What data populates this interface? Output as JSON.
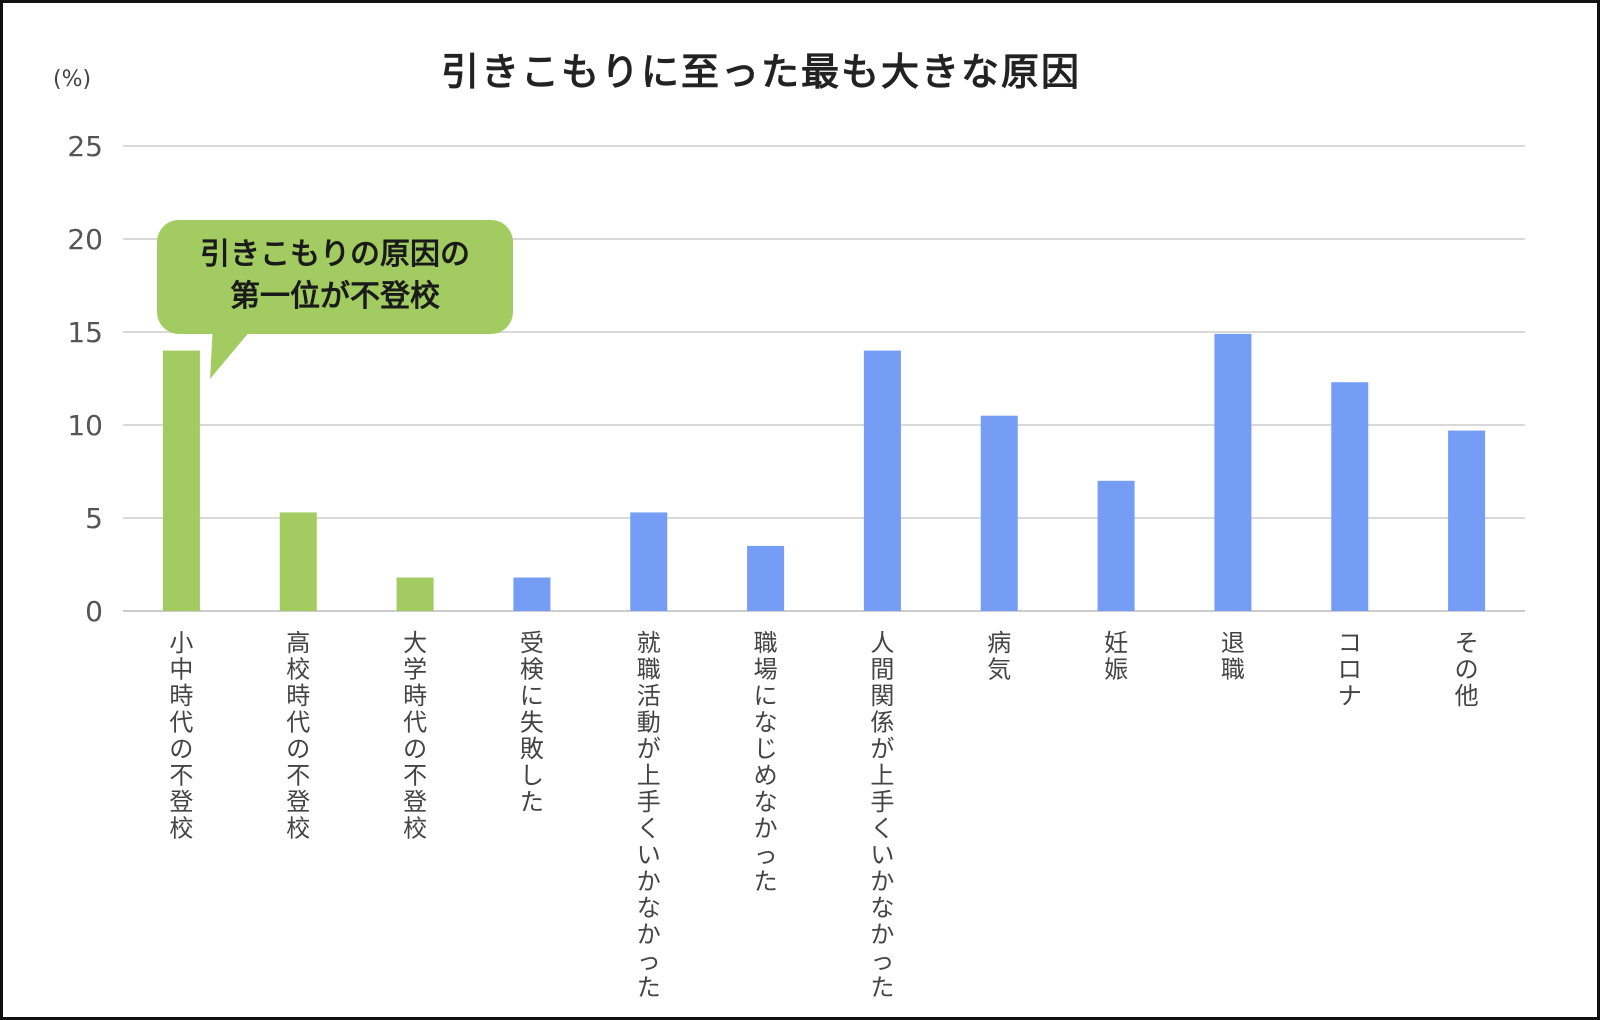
{
  "chart_data": {
    "type": "bar",
    "title": "引きこもりに至った最も大きな原因",
    "unit": "(%)",
    "ylim": [
      0,
      25
    ],
    "yticks": [
      0,
      5,
      10,
      15,
      20,
      25
    ],
    "grid": true,
    "categories": [
      "小中時代の不登校",
      "高校時代の不登校",
      "大学時代の不登校",
      "受検に失敗した",
      "就職活動が上手くいかなかった",
      "職場になじめなかった",
      "人間関係が上手くいかなかった",
      "病気",
      "妊娠",
      "退職",
      "コロナ",
      "その他"
    ],
    "values": [
      14.0,
      5.3,
      1.8,
      1.8,
      5.3,
      3.5,
      14.0,
      10.5,
      7.0,
      14.9,
      12.3,
      9.7
    ],
    "bar_colors": [
      "#a2cb61",
      "#a2cb61",
      "#a2cb61",
      "#769df6",
      "#769df6",
      "#769df6",
      "#769df6",
      "#769df6",
      "#769df6",
      "#769df6",
      "#769df6",
      "#769df6"
    ],
    "annotation": {
      "line1": "引きこもりの原因の",
      "line2": "第一位が不登校"
    }
  },
  "colors": {
    "school_refusal": "#a2cb61",
    "other_causes": "#769df6",
    "callout": "#a2cb61",
    "grid": "#d9d9d9"
  }
}
